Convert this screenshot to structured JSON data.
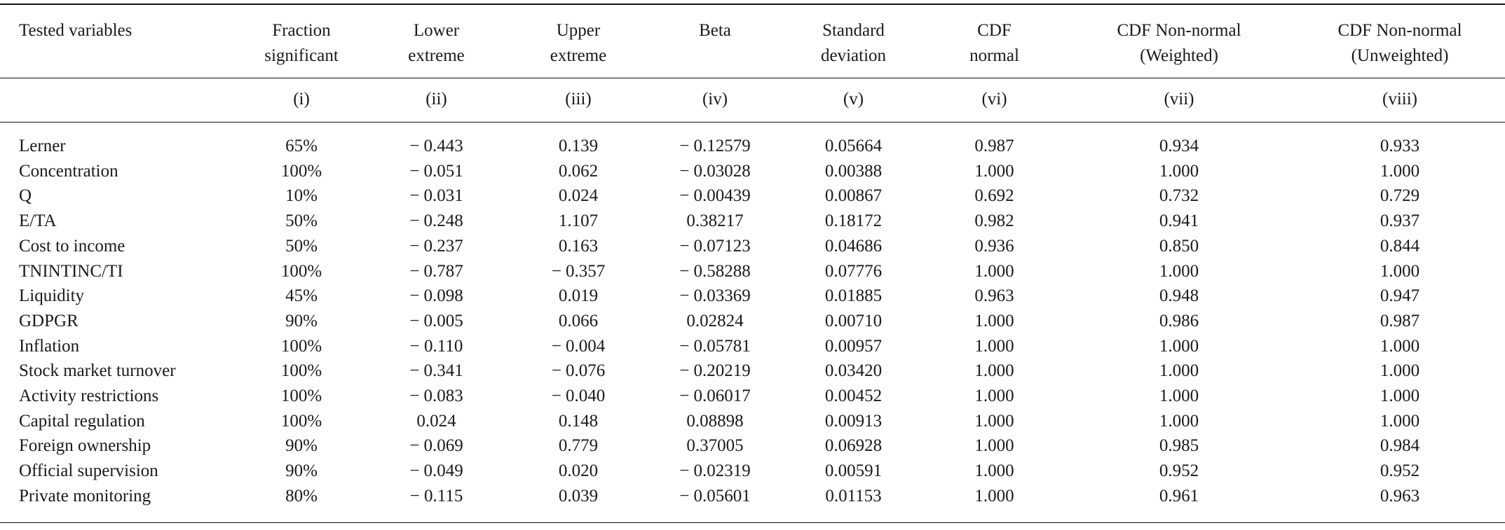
{
  "table": {
    "headers": [
      [
        "Tested variables"
      ],
      [
        "Fraction",
        "significant"
      ],
      [
        "Lower",
        "extreme"
      ],
      [
        "Upper",
        "extreme"
      ],
      [
        "Beta"
      ],
      [
        "Standard",
        "deviation"
      ],
      [
        "CDF",
        "normal"
      ],
      [
        "CDF Non-normal",
        "(Weighted)"
      ],
      [
        "CDF Non-normal",
        "(Unweighted)"
      ]
    ],
    "column_numbers": [
      "",
      "(i)",
      "(ii)",
      "(iii)",
      "(iv)",
      "(v)",
      "(vi)",
      "(vii)",
      "(viii)"
    ],
    "rows": [
      [
        "Lerner",
        "65%",
        "− 0.443",
        "0.139",
        "− 0.12579",
        "0.05664",
        "0.987",
        "0.934",
        "0.933"
      ],
      [
        "Concentration",
        "100%",
        "− 0.051",
        "0.062",
        "− 0.03028",
        "0.00388",
        "1.000",
        "1.000",
        "1.000"
      ],
      [
        "Q",
        "10%",
        "− 0.031",
        "0.024",
        "− 0.00439",
        "0.00867",
        "0.692",
        "0.732",
        "0.729"
      ],
      [
        "E/TA",
        "50%",
        "− 0.248",
        "1.107",
        "0.38217",
        "0.18172",
        "0.982",
        "0.941",
        "0.937"
      ],
      [
        "Cost to income",
        "50%",
        "− 0.237",
        "0.163",
        "− 0.07123",
        "0.04686",
        "0.936",
        "0.850",
        "0.844"
      ],
      [
        "TNINTINC/TI",
        "100%",
        "− 0.787",
        "− 0.357",
        "− 0.58288",
        "0.07776",
        "1.000",
        "1.000",
        "1.000"
      ],
      [
        "Liquidity",
        "45%",
        "− 0.098",
        "0.019",
        "− 0.03369",
        "0.01885",
        "0.963",
        "0.948",
        "0.947"
      ],
      [
        "GDPGR",
        "90%",
        "− 0.005",
        "0.066",
        "0.02824",
        "0.00710",
        "1.000",
        "0.986",
        "0.987"
      ],
      [
        "Inflation",
        "100%",
        "− 0.110",
        "− 0.004",
        "− 0.05781",
        "0.00957",
        "1.000",
        "1.000",
        "1.000"
      ],
      [
        "Stock market turnover",
        "100%",
        "− 0.341",
        "− 0.076",
        "− 0.20219",
        "0.03420",
        "1.000",
        "1.000",
        "1.000"
      ],
      [
        "Activity restrictions",
        "100%",
        "− 0.083",
        "− 0.040",
        "− 0.06017",
        "0.00452",
        "1.000",
        "1.000",
        "1.000"
      ],
      [
        "Capital regulation",
        "100%",
        "0.024",
        "0.148",
        "0.08898",
        "0.00913",
        "1.000",
        "1.000",
        "1.000"
      ],
      [
        "Foreign ownership",
        "90%",
        "− 0.069",
        "0.779",
        "0.37005",
        "0.06928",
        "1.000",
        "0.985",
        "0.984"
      ],
      [
        "Official supervision",
        "90%",
        "− 0.049",
        "0.020",
        "− 0.02319",
        "0.00591",
        "1.000",
        "0.952",
        "0.952"
      ],
      [
        "Private monitoring",
        "80%",
        "− 0.115",
        "0.039",
        "− 0.05601",
        "0.01153",
        "1.000",
        "0.961",
        "0.963"
      ]
    ]
  }
}
